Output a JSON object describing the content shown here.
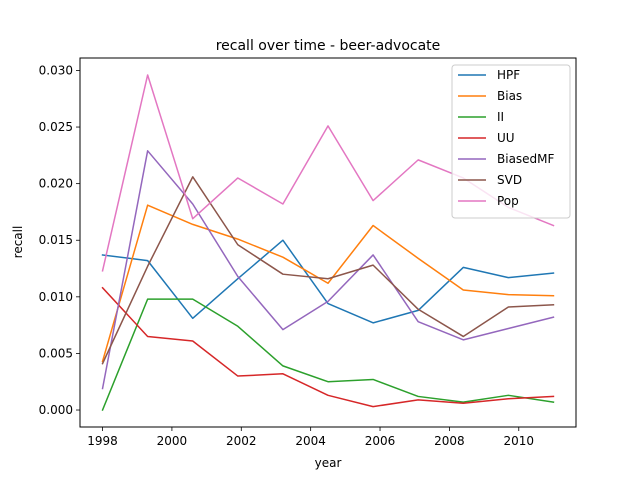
{
  "chart_data": {
    "type": "line",
    "title": "recall over time - beer-advocate",
    "xlabel": "year",
    "ylabel": "recall",
    "xlim": [
      1997.35,
      2011.65
    ],
    "ylim": [
      -0.0015,
      0.0311
    ],
    "xticks": [
      1998,
      2000,
      2002,
      2004,
      2006,
      2008,
      2010
    ],
    "xtick_labels": [
      "1998",
      "2000",
      "2002",
      "2004",
      "2006",
      "2008",
      "2010"
    ],
    "yticks": [
      0.0,
      0.005,
      0.01,
      0.015,
      0.02,
      0.025,
      0.03
    ],
    "ytick_labels": [
      "0.000",
      "0.005",
      "0.010",
      "0.015",
      "0.020",
      "0.025",
      "0.030"
    ],
    "grid": false,
    "legend_position": "top-right",
    "x": [
      1998.0,
      1999.3,
      2000.6,
      2001.9,
      2003.2,
      2004.5,
      2005.8,
      2007.1,
      2008.4,
      2009.7,
      2011.0
    ],
    "series": [
      {
        "name": "HPF",
        "color": "#1f77b4",
        "values": [
          0.0137,
          0.0132,
          0.0081,
          0.0116,
          0.015,
          0.0094,
          0.0077,
          0.0088,
          0.0126,
          0.0117,
          0.0121
        ]
      },
      {
        "name": "Bias",
        "color": "#ff7f0e",
        "values": [
          0.0043,
          0.0181,
          0.0164,
          0.0151,
          0.0135,
          0.0112,
          0.0163,
          0.0134,
          0.0106,
          0.0102,
          0.0101
        ]
      },
      {
        "name": "II",
        "color": "#2ca02c",
        "values": [
          0.0,
          0.0098,
          0.0098,
          0.0074,
          0.0039,
          0.0025,
          0.0027,
          0.0012,
          0.0007,
          0.0013,
          0.0007
        ]
      },
      {
        "name": "UU",
        "color": "#d62728",
        "values": [
          0.0108,
          0.0065,
          0.0061,
          0.003,
          0.0032,
          0.0013,
          0.0003,
          0.0009,
          0.0006,
          0.001,
          0.0012
        ]
      },
      {
        "name": "BiasedMF",
        "color": "#9467bd",
        "values": [
          0.0019,
          0.0229,
          0.0182,
          0.0118,
          0.0071,
          0.0096,
          0.0137,
          0.0078,
          0.0062,
          0.0072,
          0.0082
        ]
      },
      {
        "name": "SVD",
        "color": "#8c564b",
        "values": [
          0.0041,
          0.0127,
          0.0206,
          0.0146,
          0.012,
          0.0116,
          0.0128,
          0.0089,
          0.0065,
          0.0091,
          0.0093
        ]
      },
      {
        "name": "Pop",
        "color": "#e377c2",
        "values": [
          0.0123,
          0.0296,
          0.0169,
          0.0205,
          0.0182,
          0.0251,
          0.0185,
          0.0221,
          0.0205,
          0.0179,
          0.0163
        ]
      }
    ]
  }
}
